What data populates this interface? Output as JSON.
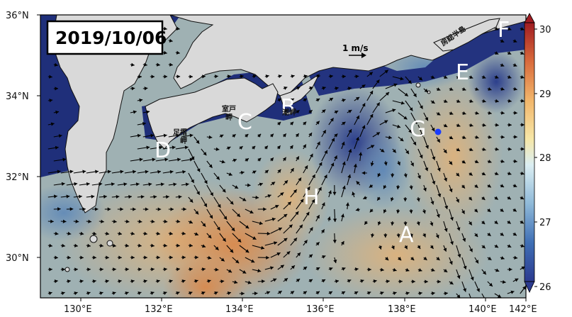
{
  "map": {
    "date": "2019/10/06",
    "scale_label": "1 m/s",
    "lon_ticks": [
      "130°E",
      "132°E",
      "134°E",
      "136°E",
      "138°E",
      "140°E",
      "142°E"
    ],
    "lat_ticks": [
      "36°N",
      "34°N",
      "32°N",
      "30°N"
    ],
    "regions": [
      "A",
      "B",
      "C",
      "D",
      "E",
      "F",
      "G",
      "H"
    ],
    "capes": [
      "足摺岬",
      "室戸岬",
      "潮岬",
      "房総半島"
    ],
    "colorbar": {
      "min": 26,
      "max": 30,
      "ticks": [
        "30",
        "29",
        "28",
        "27",
        "26"
      ]
    },
    "colors": {
      "land": "#d9d9d9",
      "warm": "#d8924e",
      "cold": "#1f2f7a",
      "marker": "#1a3cff"
    }
  }
}
